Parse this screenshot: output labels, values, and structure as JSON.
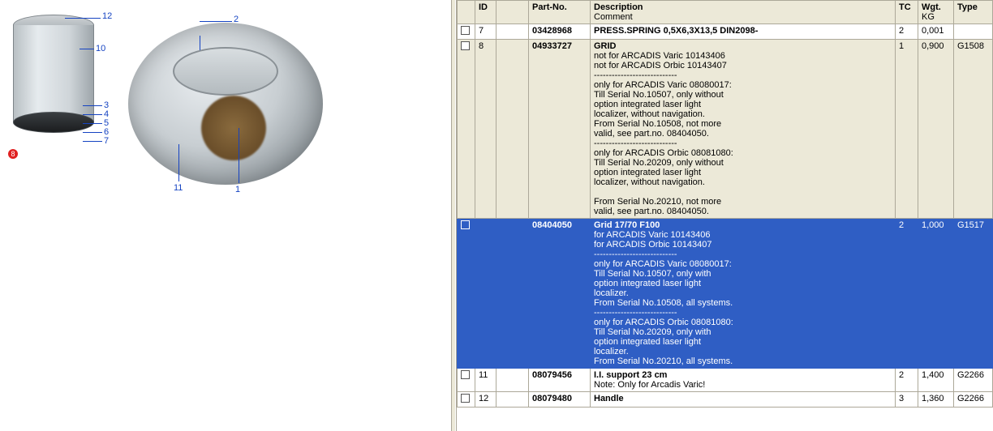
{
  "diagram": {
    "callouts_left": [
      "12",
      "10",
      "3",
      "4",
      "5",
      "6",
      "7"
    ],
    "selected_callout": "8",
    "callouts_right": [
      "2",
      "11",
      "1"
    ]
  },
  "table": {
    "headers": {
      "chk": "",
      "id": "ID",
      "gap": "",
      "part": "Part-No.",
      "desc": "Description",
      "desc_sub": "Comment",
      "tc": "TC",
      "wgt": "Wgt.",
      "wgt_sub": "KG",
      "type": "Type"
    },
    "rows": [
      {
        "style": "normal",
        "checkbox": true,
        "id": "7",
        "part": "03428968",
        "title": "PRESS.SPRING 0,5X6,3X13,5 DIN2098-",
        "body": "",
        "tc": "2",
        "wgt": "0,001",
        "type": ""
      },
      {
        "style": "alt",
        "checkbox": true,
        "id": "8",
        "part": "04933727",
        "title": "GRID",
        "body": " not for ARCADIS Varic 10143406\nnot for ARCADIS Orbic 10143407\n----------------------------\nonly for ARCADIS Varic 08080017:\nTill Serial No.10507, only without\noption integrated laser light\nlocalizer, without navigation.\nFrom Serial No.10508, not more\nvalid, see part.no. 08404050.\n----------------------------\nonly for ARCADIS Orbic 08081080:\nTill Serial No.20209, only without\noption integrated laser light\nlocalizer, without navigation.\n\nFrom Serial No.20210, not more\nvalid, see part.no. 08404050.",
        "tc": "1",
        "wgt": "0,900",
        "type": "G1508"
      },
      {
        "style": "selected",
        "checkbox": true,
        "id": "",
        "part": "08404050",
        "title": "Grid 17/70 F100",
        "body": " for ARCADIS Varic 10143406\nfor ARCADIS Orbic 10143407\n----------------------------\nonly for ARCADIS Varic 08080017:\nTill Serial No.10507, only with\noption integrated laser light\nlocalizer.\nFrom Serial No.10508, all systems.\n----------------------------\nonly for ARCADIS Orbic 08081080:\nTill Serial No.20209, only with\noption integrated laser light\nlocalizer.\nFrom Serial No.20210, all systems.",
        "tc": "2",
        "wgt": "1,000",
        "type": "G1517"
      },
      {
        "style": "normal",
        "checkbox": true,
        "id": "11",
        "part": "08079456",
        "title": "I.I. support  23 cm",
        "body": "Note: Only for Arcadis Varic!",
        "tc": "2",
        "wgt": "1,400",
        "type": "G2266"
      },
      {
        "style": "normal",
        "checkbox": true,
        "id": "12",
        "part": "08079480",
        "title": "Handle",
        "body": "",
        "tc": "3",
        "wgt": "1,360",
        "type": "G2266"
      }
    ]
  }
}
